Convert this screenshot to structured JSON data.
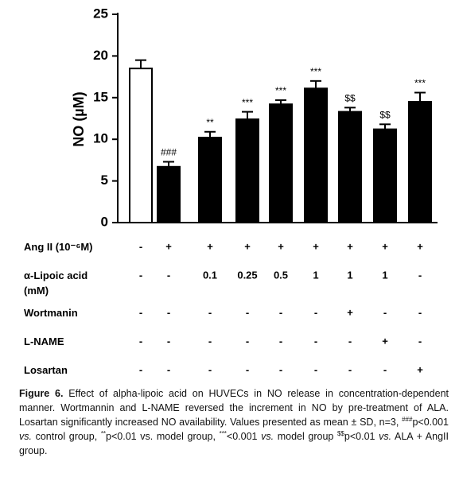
{
  "chart_data": {
    "type": "bar",
    "ylabel": "NO (µM)",
    "ylim": [
      0,
      25
    ],
    "yticks": [
      0,
      5,
      10,
      15,
      20,
      25
    ],
    "values": [
      18.5,
      6.7,
      10.2,
      12.4,
      14.2,
      16.1,
      13.3,
      11.2,
      14.5
    ],
    "errors": [
      1.0,
      0.6,
      0.7,
      0.9,
      0.5,
      0.9,
      0.5,
      0.6,
      1.1
    ],
    "annotations": [
      null,
      "###",
      "**",
      "***",
      "***",
      "***",
      "$$",
      "$$",
      "***"
    ],
    "colors": [
      "#ffffff",
      "#000000",
      "#000000",
      "#000000",
      "#000000",
      "#000000",
      "#000000",
      "#000000",
      "#000000"
    ]
  },
  "table": {
    "rows": [
      {
        "label": "Ang II (10⁻⁶M)",
        "cells": [
          "-",
          "+",
          "+",
          "+",
          "+",
          "+",
          "+",
          "+",
          "+"
        ]
      },
      {
        "label": "α-Lipoic acid (mM)",
        "cells": [
          "-",
          "-",
          "0.1",
          "0.25",
          "0.5",
          "1",
          "1",
          "1",
          "-"
        ]
      },
      {
        "label": "Wortmanin",
        "cells": [
          "-",
          "-",
          "-",
          "-",
          "-",
          "-",
          "+",
          "-",
          "-"
        ]
      },
      {
        "label": "L-NAME",
        "cells": [
          "-",
          "-",
          "-",
          "-",
          "-",
          "-",
          "-",
          "+",
          "-"
        ]
      },
      {
        "label": "Losartan",
        "cells": [
          "-",
          "-",
          "-",
          "-",
          "-",
          "-",
          "-",
          "-",
          "+"
        ]
      }
    ]
  },
  "caption": {
    "parts": [
      {
        "text": "Figure 6.",
        "style": "bold"
      },
      {
        "text": " Effect of alpha-lipoic acid on HUVECs in NO release in concentration-dependent manner. Wortmannin and L-NAME reversed the increment in NO by pre-treatment of ALA. Losartan significantly increased NO availability. Values presented as mean ± SD, n=3, "
      },
      {
        "text": "###",
        "style": "sup"
      },
      {
        "text": "p<0.001 "
      },
      {
        "text": "vs.",
        "style": "italic"
      },
      {
        "text": " control group, "
      },
      {
        "text": "**",
        "style": "sup"
      },
      {
        "text": "p<0.01 vs. model group, "
      },
      {
        "text": "***",
        "style": "sup"
      },
      {
        "text": "<0.001 "
      },
      {
        "text": "vs.",
        "style": "italic"
      },
      {
        "text": " model group "
      },
      {
        "text": "$$",
        "style": "sup"
      },
      {
        "text": "p<0.01 "
      },
      {
        "text": "vs.",
        "style": "italic"
      },
      {
        "text": " ALA + AngII group."
      }
    ]
  }
}
